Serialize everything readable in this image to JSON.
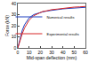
{
  "chart_data": {
    "type": "line",
    "x_label": "Mid-span deflection (mm)",
    "y_label": "Force (kN)",
    "series": [
      {
        "name": "Numerical results",
        "color": "#1f3fbf",
        "line_style": "solid",
        "x": [
          0,
          2,
          4,
          6,
          8,
          10,
          14,
          18,
          22,
          26,
          30,
          35,
          40,
          45,
          50,
          55,
          60
        ],
        "values": [
          0,
          9,
          16,
          21,
          24.5,
          27,
          30,
          31.5,
          32.5,
          33.3,
          34,
          34.6,
          35.2,
          35.6,
          36,
          36.3,
          36.6
        ]
      },
      {
        "name": "Experimental results",
        "color": "#d62728",
        "line_style": "solid",
        "x": [
          0,
          2,
          4,
          6,
          8,
          10,
          14,
          18,
          22,
          26,
          30,
          35,
          40,
          45,
          50,
          55,
          60
        ],
        "values": [
          0,
          7,
          13,
          18,
          22,
          25,
          29,
          31,
          32.8,
          33.5,
          34.5,
          35,
          35.8,
          36.2,
          36.8,
          37,
          37.4
        ]
      }
    ],
    "xlim": [
      0,
      60
    ],
    "xticks": [
      0,
      10,
      20,
      30,
      40,
      50,
      60
    ],
    "ylim": [
      0,
      40
    ],
    "yticks": [
      0,
      10,
      20,
      30,
      40
    ],
    "grid": false,
    "legend": "lower right"
  }
}
